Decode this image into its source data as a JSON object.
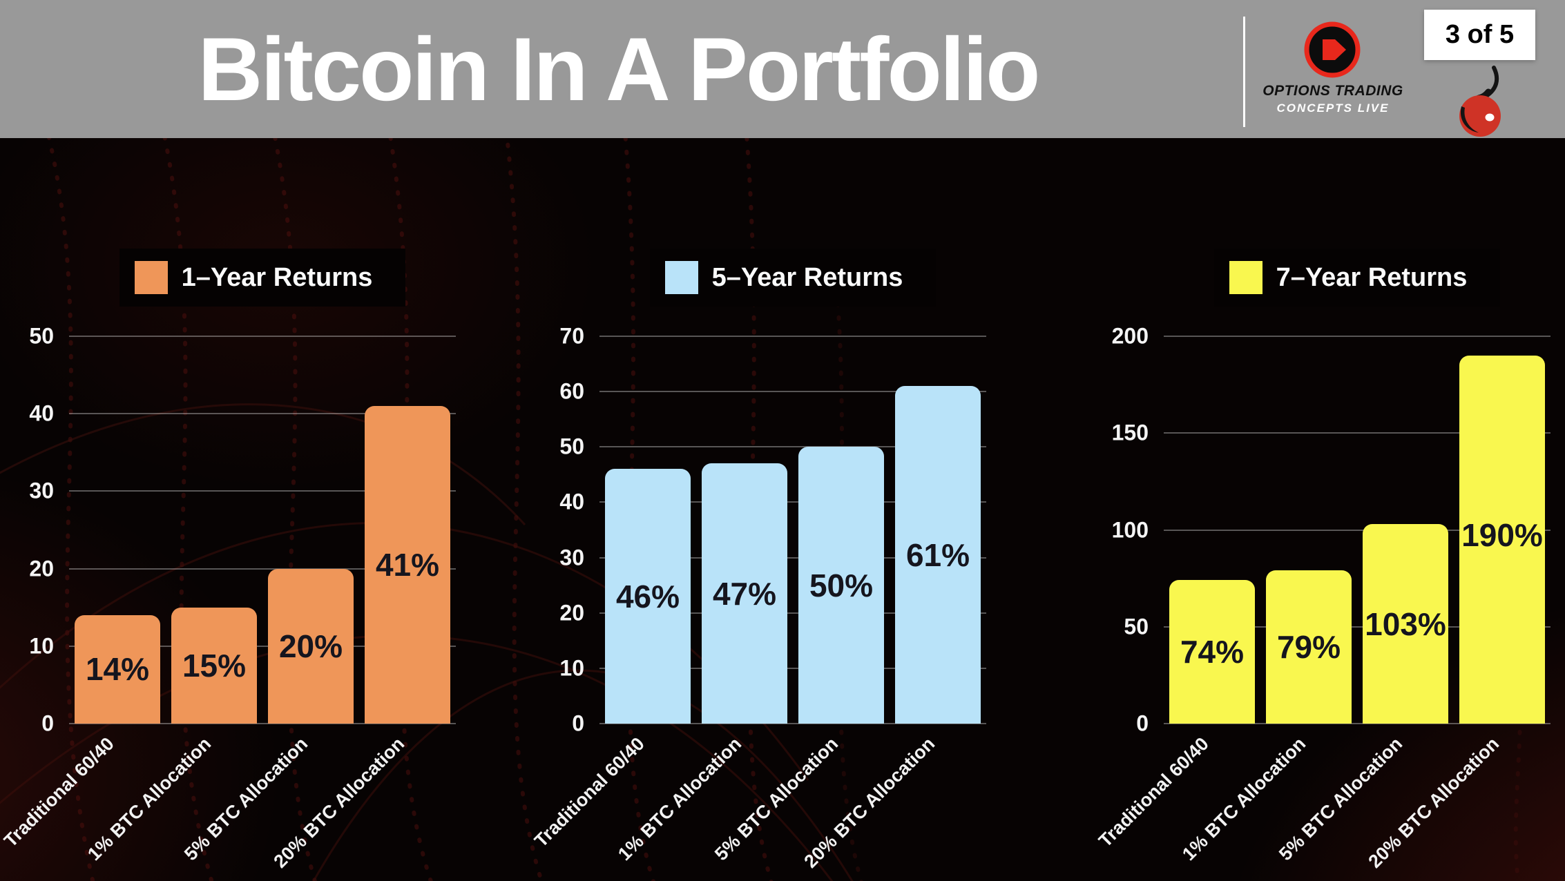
{
  "header": {
    "title": "Bitcoin In A Portfolio",
    "brand_line1": "OPTIONS TRADING",
    "brand_line2": "CONCEPTS LIVE",
    "page_indicator": "3 of 5"
  },
  "icons": {
    "brand_logo": "circle-play-logo-icon",
    "cherry": "cherry-icon"
  },
  "colors": {
    "header_bg": "#999999",
    "canvas_bg": "#070303",
    "gridline": "rgba(255,255,255,0.33)",
    "axis_text": "#f4f4f4",
    "value_label_text": "#15151e",
    "accent_red": "#e8281c"
  },
  "chart_data": [
    {
      "type": "bar",
      "title": "1–Year Returns",
      "legend": [
        "1–Year Returns"
      ],
      "legend_position": "top",
      "categories": [
        "Traditional 60/40",
        "1% BTC Allocation",
        "5% BTC Allocation",
        "20% BTC Allocation"
      ],
      "values": [
        14,
        15,
        20,
        41
      ],
      "data_labels": [
        "14%",
        "15%",
        "20%",
        "41%"
      ],
      "bar_color": "#EF9659",
      "ylim": [
        0,
        50
      ],
      "yticks": [
        0,
        10,
        20,
        30,
        40,
        50
      ],
      "grid": true,
      "x_label_rotation": -45
    },
    {
      "type": "bar",
      "title": "5–Year Returns",
      "legend": [
        "5–Year Returns"
      ],
      "legend_position": "top",
      "categories": [
        "Traditional 60/40",
        "1% BTC Allocation",
        "5% BTC Allocation",
        "20% BTC Allocation"
      ],
      "values": [
        46,
        47,
        50,
        61
      ],
      "data_labels": [
        "46%",
        "47%",
        "50%",
        "61%"
      ],
      "bar_color": "#B9E3F9",
      "ylim": [
        0,
        70
      ],
      "yticks": [
        0,
        10,
        20,
        30,
        40,
        50,
        60,
        70
      ],
      "grid": true,
      "x_label_rotation": -45
    },
    {
      "type": "bar",
      "title": "7–Year Returns",
      "legend": [
        "7–Year Returns"
      ],
      "legend_position": "top",
      "categories": [
        "Traditional 60/40",
        "1% BTC Allocation",
        "5% BTC Allocation",
        "20% BTC Allocation"
      ],
      "values": [
        74,
        79,
        103,
        190
      ],
      "data_labels": [
        "74%",
        "79%",
        "103%",
        "190%"
      ],
      "bar_color": "#F9F74F",
      "ylim": [
        0,
        200
      ],
      "yticks": [
        0,
        50,
        100,
        150,
        200
      ],
      "grid": true,
      "x_label_rotation": -45
    }
  ]
}
